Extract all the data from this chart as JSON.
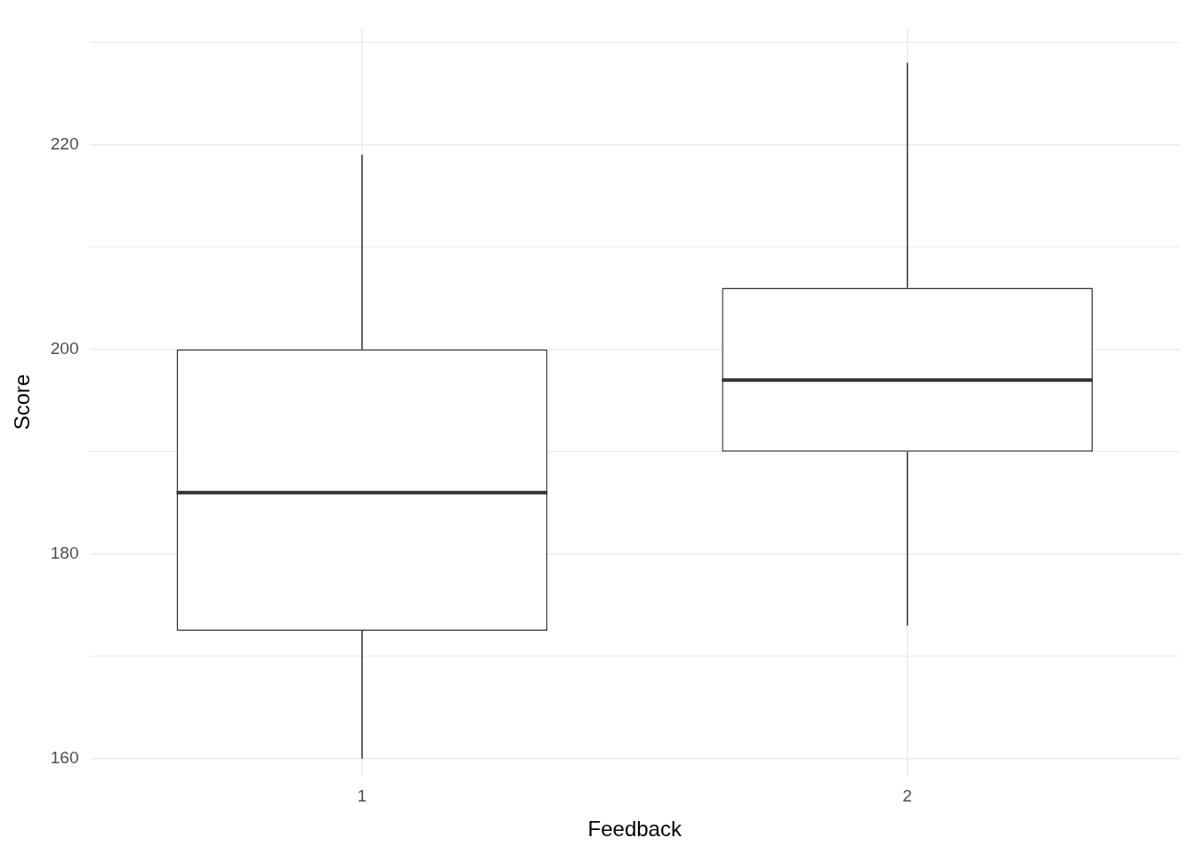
{
  "chart_data": {
    "type": "box",
    "categories": [
      "1",
      "2"
    ],
    "xlabel": "Feedback",
    "ylabel": "Score",
    "color": "#333333",
    "boxes": [
      {
        "low": 160,
        "q1": 172.5,
        "median": 186,
        "q3": 200,
        "high": 219
      },
      {
        "low": 173,
        "q1": 190,
        "median": 197,
        "q3": 206,
        "high": 228
      }
    ],
    "ylim": [
      158.3,
      231.4
    ],
    "yticks": [
      160,
      {
        "value": 170,
        "label": null
      },
      180,
      {
        "value": 190,
        "label": null
      },
      200,
      {
        "value": 210,
        "label": null
      },
      220,
      {
        "value": 230,
        "label": null
      }
    ],
    "grid": true
  }
}
